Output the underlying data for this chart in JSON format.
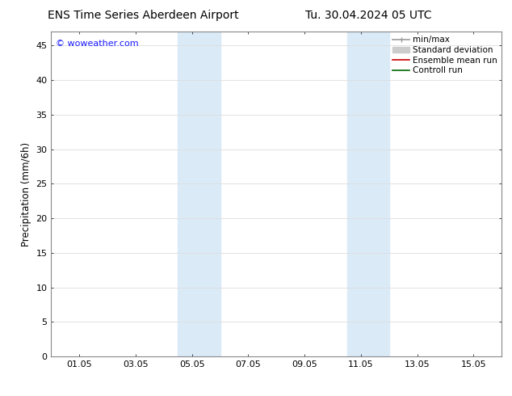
{
  "title_left": "ENS Time Series Aberdeen Airport",
  "title_right": "Tu. 30.04.2024 05 UTC",
  "ylabel": "Precipitation (mm/6h)",
  "ylim": [
    0,
    47
  ],
  "yticks": [
    0,
    5,
    10,
    15,
    20,
    25,
    30,
    35,
    40,
    45
  ],
  "xtick_labels": [
    "01.05",
    "03.05",
    "05.05",
    "07.05",
    "09.05",
    "11.05",
    "13.05",
    "15.05"
  ],
  "xtick_positions": [
    1,
    3,
    5,
    7,
    9,
    11,
    13,
    15
  ],
  "xlim": [
    0,
    16
  ],
  "shaded_bands": [
    {
      "xstart": 4.5,
      "xend": 6.0
    },
    {
      "xstart": 10.5,
      "xend": 12.0
    }
  ],
  "shaded_color": "#daeaf7",
  "watermark_text": "© woweather.com",
  "watermark_color": "#1a1aff",
  "legend_items": [
    {
      "label": "min/max",
      "color": "#999999",
      "lw": 1.2
    },
    {
      "label": "Standard deviation",
      "color": "#cccccc",
      "lw": 7
    },
    {
      "label": "Ensemble mean run",
      "color": "#cc0000",
      "lw": 1.2
    },
    {
      "label": "Controll run",
      "color": "#006600",
      "lw": 1.2
    }
  ],
  "bg_color": "#ffffff",
  "plot_bg_color": "#ffffff",
  "grid_color": "#dddddd",
  "spine_color": "#888888",
  "title_fontsize": 10,
  "label_fontsize": 8.5,
  "tick_fontsize": 8,
  "legend_fontsize": 7.5,
  "watermark_fontsize": 8
}
